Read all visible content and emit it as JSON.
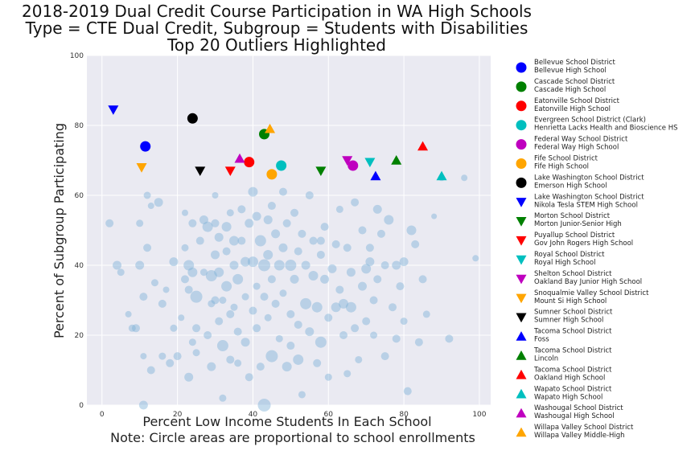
{
  "chart_data": {
    "type": "scatter",
    "title": [
      "2018-2019 Dual Credit Course Participation in WA High Schools",
      "Type = CTE Dual Credit, Subgroup = Students with Disabilities",
      "Top 20 Outliers Highlighted"
    ],
    "xlabel": [
      "Percent Low Income Students In Each School",
      "Note: Circle areas are proportional to school enrollments"
    ],
    "ylabel": "Percent of Subgroup Participating",
    "xlim": [
      -4,
      103
    ],
    "ylim": [
      0,
      100
    ],
    "xticks": [
      0,
      20,
      40,
      60,
      80,
      100
    ],
    "yticks": [
      0,
      20,
      40,
      60,
      80,
      100
    ],
    "grid": true,
    "legend_position": "outside-right",
    "background_series": {
      "color": "#7fb2d8",
      "points": [
        [
          2,
          52,
          1.0
        ],
        [
          4,
          40,
          1.1
        ],
        [
          5,
          38,
          0.9
        ],
        [
          8,
          22,
          0.9
        ],
        [
          9,
          22,
          1.0
        ],
        [
          10,
          52,
          0.9
        ],
        [
          10,
          40,
          1.1
        ],
        [
          11,
          14,
          0.8
        ],
        [
          11,
          31,
          1.0
        ],
        [
          11,
          0,
          1.1
        ],
        [
          12,
          45,
          1.0
        ],
        [
          12,
          60,
          0.9
        ],
        [
          13,
          10,
          1.0
        ],
        [
          13,
          57,
          0.8
        ],
        [
          14,
          35,
          0.9
        ],
        [
          15,
          58,
          1.1
        ],
        [
          16,
          29,
          1.0
        ],
        [
          16,
          14,
          0.9
        ],
        [
          17,
          33,
          0.8
        ],
        [
          18,
          12,
          1.0
        ],
        [
          19,
          41,
          1.1
        ],
        [
          19,
          22,
          0.9
        ],
        [
          20,
          14,
          1.0
        ],
        [
          21,
          25,
          0.8
        ],
        [
          22,
          45,
          0.9
        ],
        [
          22,
          36,
          1.0
        ],
        [
          22,
          55,
          0.8
        ],
        [
          23,
          33,
          1.0
        ],
        [
          23,
          40,
          1.3
        ],
        [
          23,
          8,
          1.1
        ],
        [
          24,
          52,
          1.0
        ],
        [
          24,
          18,
          0.9
        ],
        [
          24,
          38,
          1.2
        ],
        [
          25,
          31,
          1.5
        ],
        [
          25,
          22,
          1.0
        ],
        [
          25,
          15,
          0.9
        ],
        [
          26,
          47,
          1.0
        ],
        [
          27,
          53,
          1.1
        ],
        [
          27,
          38,
          0.9
        ],
        [
          28,
          20,
          1.0
        ],
        [
          28,
          51,
          1.3
        ],
        [
          29,
          11,
          1.1
        ],
        [
          29,
          37,
          1.4
        ],
        [
          29,
          29,
          0.9
        ],
        [
          30,
          52,
          1.0
        ],
        [
          30,
          43,
          1.1
        ],
        [
          30,
          60,
          0.8
        ],
        [
          31,
          48,
          1.1
        ],
        [
          31,
          24,
          1.0
        ],
        [
          31,
          38,
          1.2
        ],
        [
          32,
          30,
          0.9
        ],
        [
          32,
          17,
          1.4
        ],
        [
          32,
          2,
          0.9
        ],
        [
          33,
          51,
          1.2
        ],
        [
          33,
          44,
          1.0
        ],
        [
          33,
          34,
          1.3
        ],
        [
          34,
          55,
          0.9
        ],
        [
          34,
          26,
          1.0
        ],
        [
          34,
          13,
          1.0
        ],
        [
          35,
          40,
          1.1
        ],
        [
          35,
          28,
          0.9
        ],
        [
          35,
          47,
          1.2
        ],
        [
          36,
          36,
          1.3
        ],
        [
          36,
          21,
          1.0
        ],
        [
          36,
          12,
          0.9
        ],
        [
          37,
          47,
          1.0
        ],
        [
          37,
          56,
          1.0
        ],
        [
          38,
          31,
          0.9
        ],
        [
          38,
          18,
          1.1
        ],
        [
          38,
          41,
          1.2
        ],
        [
          39,
          8,
          1.0
        ],
        [
          39,
          52,
          1.1
        ],
        [
          40,
          27,
          1.0
        ],
        [
          40,
          41,
          1.3
        ],
        [
          40,
          61,
          1.2
        ],
        [
          41,
          34,
          0.9
        ],
        [
          41,
          22,
          1.0
        ],
        [
          41,
          54,
          1.1
        ],
        [
          42,
          47,
          1.4
        ],
        [
          42,
          11,
          1.0
        ],
        [
          43,
          0,
          1.6
        ],
        [
          43,
          40,
          1.5
        ],
        [
          43,
          31,
          1.0
        ],
        [
          44,
          53,
          1.1
        ],
        [
          44,
          25,
          0.9
        ],
        [
          44,
          43,
          1.2
        ],
        [
          45,
          36,
          1.0
        ],
        [
          45,
          14,
          1.5
        ],
        [
          45,
          57,
          1.0
        ],
        [
          46,
          49,
          1.1
        ],
        [
          46,
          29,
          1.0
        ],
        [
          47,
          40,
          1.3
        ],
        [
          47,
          19,
          0.9
        ],
        [
          48,
          61,
          1.0
        ],
        [
          48,
          45,
          1.1
        ],
        [
          48,
          32,
          0.9
        ],
        [
          49,
          11,
          1.2
        ],
        [
          49,
          52,
          1.0
        ],
        [
          50,
          40,
          1.4
        ],
        [
          50,
          26,
          1.0
        ],
        [
          50,
          17,
          1.0
        ],
        [
          51,
          55,
          1.0
        ],
        [
          51,
          36,
          1.1
        ],
        [
          52,
          44,
          1.0
        ],
        [
          52,
          13,
          1.3
        ],
        [
          52,
          23,
          1.0
        ],
        [
          53,
          49,
          1.0
        ],
        [
          53,
          3,
          0.9
        ],
        [
          54,
          29,
          1.4
        ],
        [
          54,
          40,
          1.1
        ],
        [
          55,
          60,
          1.0
        ],
        [
          55,
          21,
          1.1
        ],
        [
          56,
          37,
          1.2
        ],
        [
          56,
          47,
          1.0
        ],
        [
          57,
          12,
          1.0
        ],
        [
          57,
          28,
          1.3
        ],
        [
          58,
          18,
          1.4
        ],
        [
          58,
          43,
          1.0
        ],
        [
          59,
          51,
          1.0
        ],
        [
          59,
          36,
          1.1
        ],
        [
          60,
          25,
          1.0
        ],
        [
          60,
          8,
          0.9
        ],
        [
          61,
          39,
          1.1
        ],
        [
          62,
          46,
          1.0
        ],
        [
          62,
          28,
          1.2
        ],
        [
          63,
          33,
          1.0
        ],
        [
          63,
          56,
          0.9
        ],
        [
          64,
          20,
          1.0
        ],
        [
          64,
          29,
          1.2
        ],
        [
          65,
          45,
          1.0
        ],
        [
          65,
          9,
          0.9
        ],
        [
          66,
          38,
          1.1
        ],
        [
          66,
          28,
          1.3
        ],
        [
          67,
          58,
          1.0
        ],
        [
          67,
          22,
          1.0
        ],
        [
          68,
          13,
          0.9
        ],
        [
          69,
          50,
          1.0
        ],
        [
          69,
          34,
          1.1
        ],
        [
          70,
          39,
          1.2
        ],
        [
          70,
          24,
          1.0
        ],
        [
          71,
          45,
          1.0
        ],
        [
          71,
          41,
          1.1
        ],
        [
          72,
          30,
          1.0
        ],
        [
          72,
          20,
          0.9
        ],
        [
          73,
          56,
          1.1
        ],
        [
          73,
          36,
          1.0
        ],
        [
          74,
          49,
          1.0
        ],
        [
          75,
          14,
          1.0
        ],
        [
          75,
          40,
          1.0
        ],
        [
          76,
          53,
          1.2
        ],
        [
          77,
          28,
          1.0
        ],
        [
          78,
          19,
          1.0
        ],
        [
          78,
          40,
          1.1
        ],
        [
          79,
          34,
          1.0
        ],
        [
          80,
          24,
          0.9
        ],
        [
          80,
          41,
          1.1
        ],
        [
          81,
          4,
          1.0
        ],
        [
          82,
          50,
          1.2
        ],
        [
          83,
          46,
          1.0
        ],
        [
          84,
          18,
          1.0
        ],
        [
          85,
          36,
          1.0
        ],
        [
          86,
          26,
          0.9
        ],
        [
          88,
          54,
          0.7
        ],
        [
          92,
          19,
          1.0
        ],
        [
          96,
          65,
          0.8
        ],
        [
          99,
          42,
          0.8
        ],
        [
          90,
          65,
          0.8
        ],
        [
          7,
          26,
          0.8
        ],
        [
          58,
          47,
          1.0
        ],
        [
          30,
          30,
          1.0
        ]
      ]
    },
    "series": [
      {
        "name": [
          "Bellevue School District",
          "Bellevue High School"
        ],
        "marker": "circle",
        "color": "#0000ff",
        "x": 11.5,
        "y": 74
      },
      {
        "name": [
          "Cascade School District",
          "Cascade High School"
        ],
        "marker": "circle",
        "color": "#008000",
        "x": 43,
        "y": 77.5
      },
      {
        "name": [
          "Eatonville School District",
          "Eatonville High School"
        ],
        "marker": "circle",
        "color": "#ff0000",
        "x": 39,
        "y": 69.5
      },
      {
        "name": [
          "Evergreen School District (Clark)",
          "Henrietta Lacks Health and Bioscience HS"
        ],
        "marker": "circle",
        "color": "#00bfbf",
        "x": 47.5,
        "y": 68.5
      },
      {
        "name": [
          "Federal Way School District",
          "Federal Way High School"
        ],
        "marker": "circle",
        "color": "#bf00bf",
        "x": 66.5,
        "y": 68.5
      },
      {
        "name": [
          "Fife School District",
          "Fife High School"
        ],
        "marker": "circle",
        "color": "#ffa500",
        "x": 45,
        "y": 66
      },
      {
        "name": [
          "Lake Washington School District",
          "Emerson High School"
        ],
        "marker": "circle",
        "color": "#000000",
        "x": 24,
        "y": 82
      },
      {
        "name": [
          "Lake Washington School District",
          "Nikola Tesla STEM High School"
        ],
        "marker": "triangle-down",
        "color": "#0000ff",
        "x": 3,
        "y": 84.5
      },
      {
        "name": [
          "Morton School District",
          "Morton Junior-Senior High"
        ],
        "marker": "triangle-down",
        "color": "#008000",
        "x": 58,
        "y": 67
      },
      {
        "name": [
          "Puyallup School District",
          "Gov John Rogers High School"
        ],
        "marker": "triangle-down",
        "color": "#ff0000",
        "x": 34,
        "y": 67
      },
      {
        "name": [
          "Royal School District",
          "Royal High School"
        ],
        "marker": "triangle-down",
        "color": "#00bfbf",
        "x": 71,
        "y": 69.5
      },
      {
        "name": [
          "Shelton School District",
          "Oakland Bay Junior High School"
        ],
        "marker": "triangle-down",
        "color": "#bf00bf",
        "x": 65,
        "y": 70
      },
      {
        "name": [
          "Snoqualmie Valley School District",
          "Mount Si High School"
        ],
        "marker": "triangle-down",
        "color": "#ffa500",
        "x": 10.5,
        "y": 68
      },
      {
        "name": [
          "Sumner School District",
          "Sumner High School"
        ],
        "marker": "triangle-down",
        "color": "#000000",
        "x": 26,
        "y": 67
      },
      {
        "name": [
          "Tacoma School District",
          "Foss"
        ],
        "marker": "triangle-up",
        "color": "#0000ff",
        "x": 72.5,
        "y": 65.5
      },
      {
        "name": [
          "Tacoma School District",
          "Lincoln"
        ],
        "marker": "triangle-up",
        "color": "#008000",
        "x": 78,
        "y": 70
      },
      {
        "name": [
          "Tacoma School District",
          "Oakland High School"
        ],
        "marker": "triangle-up",
        "color": "#ff0000",
        "x": 85,
        "y": 74
      },
      {
        "name": [
          "Wapato School District",
          "Wapato High School"
        ],
        "marker": "triangle-up",
        "color": "#00bfbf",
        "x": 90,
        "y": 65.5
      },
      {
        "name": [
          "Washougal School District",
          "Washougal High School"
        ],
        "marker": "triangle-up",
        "color": "#bf00bf",
        "x": 36.5,
        "y": 70.5
      },
      {
        "name": [
          "Willapa Valley School District",
          "Willapa Valley Middle-High"
        ],
        "marker": "triangle-up",
        "color": "#ffa500",
        "x": 44.5,
        "y": 79
      }
    ]
  }
}
